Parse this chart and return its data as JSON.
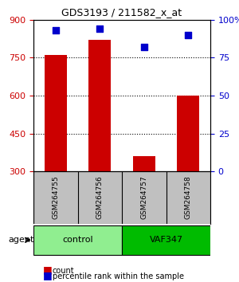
{
  "title": "GDS3193 / 211582_x_at",
  "samples": [
    "GSM264755",
    "GSM264756",
    "GSM264757",
    "GSM264758"
  ],
  "counts": [
    760,
    820,
    360,
    600
  ],
  "percentiles": [
    93,
    94,
    82,
    90
  ],
  "groups": [
    "control",
    "control",
    "VAF347",
    "VAF347"
  ],
  "group_colors": [
    "#90EE90",
    "#90EE90",
    "#00CC00",
    "#00CC00"
  ],
  "bar_color": "#CC0000",
  "dot_color": "#0000CC",
  "ylim_left": [
    300,
    900
  ],
  "ylim_right": [
    0,
    100
  ],
  "yticks_left": [
    300,
    450,
    600,
    750,
    900
  ],
  "yticks_right": [
    0,
    25,
    50,
    75,
    100
  ],
  "grid_color": "#000000",
  "bg_plot": "#FFFFFF",
  "sample_area_color": "#C0C0C0",
  "legend_count_color": "#CC0000",
  "legend_pct_color": "#0000CC",
  "xlabel_color": "#CC0000",
  "ylabel_right_color": "#0000CC"
}
